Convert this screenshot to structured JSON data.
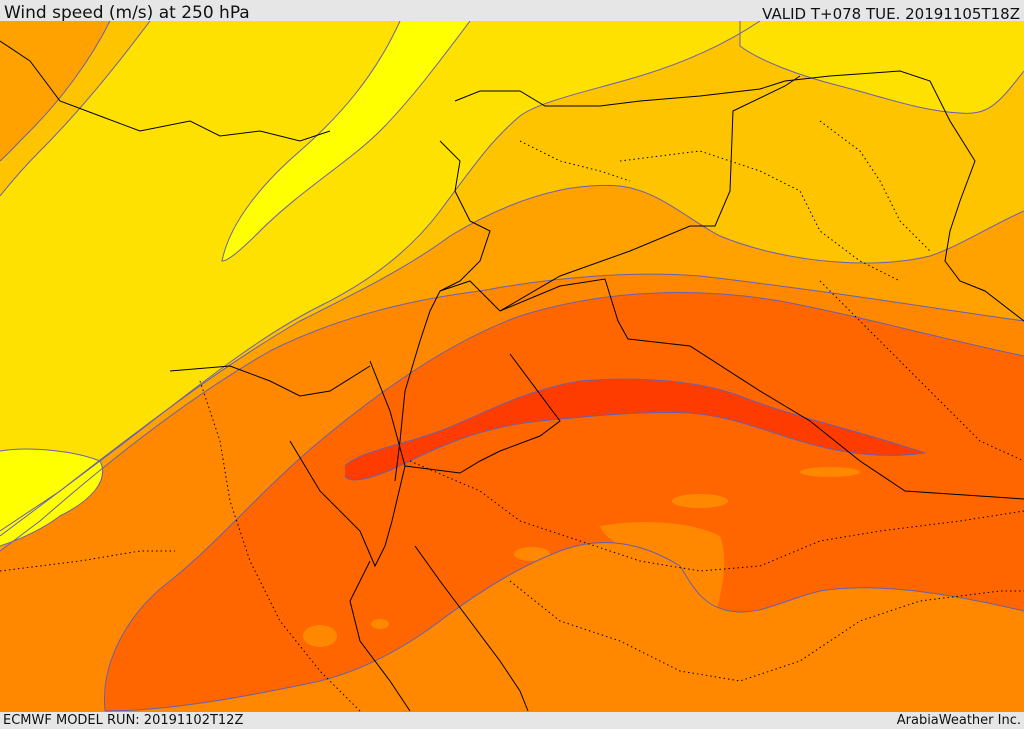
{
  "header": {
    "title": "Wind speed (m/s) at 250 hPa",
    "valid": "VALID T+078 TUE. 20191105T18Z"
  },
  "footer": {
    "model_run": "ECMWF MODEL RUN: 20191102T12Z",
    "credit": "ArabiaWeather Inc."
  },
  "map": {
    "palette": {
      "weakest": "#ffff00",
      "weak": "#ffe100",
      "light": "#ffc400",
      "moderate": "#ffa200",
      "strong": "#ff8800",
      "very_strong": "#ff6600",
      "jet_core": "#ff3c00"
    },
    "contour_color": "#6a5fb0",
    "border_color": "#000000"
  }
}
